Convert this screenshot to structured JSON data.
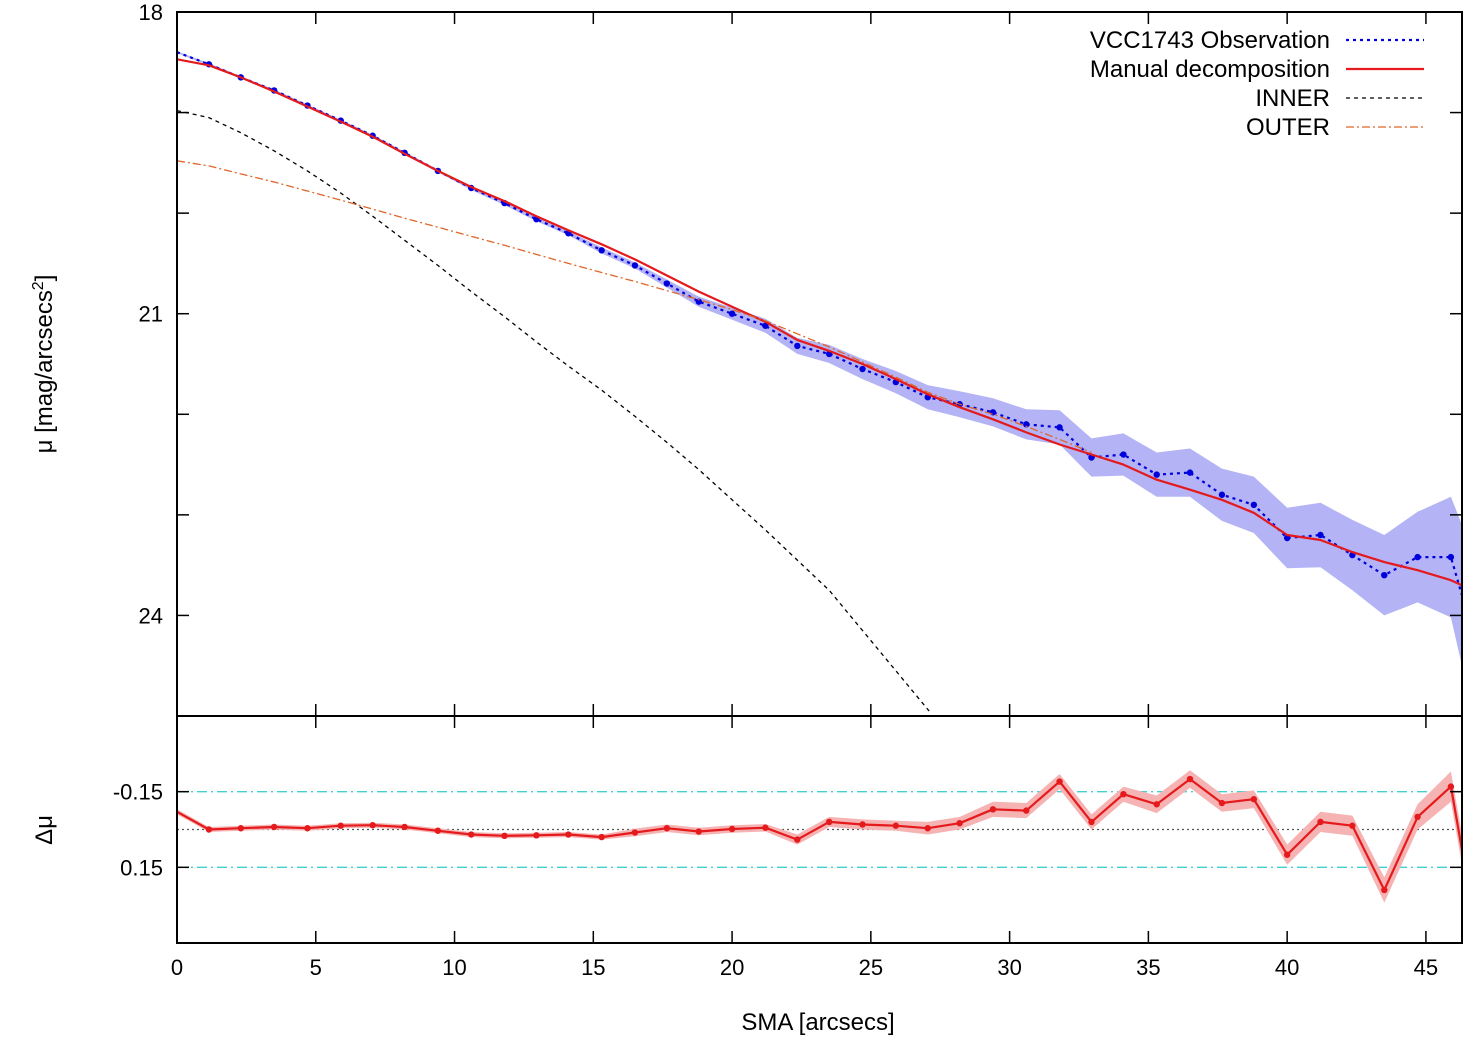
{
  "chart_data": [
    {
      "type": "line",
      "panel": "main",
      "xlabel": "",
      "ylabel": "μ [mag/arcsecs²]",
      "ylabel_main": "μ [mag/arcsecs",
      "ylabel_sup": "2",
      "ylabel_tail": "]",
      "xlim": [
        0,
        46.3
      ],
      "ylim": [
        18,
        25
      ],
      "y_inverted": true,
      "yticks": [
        18,
        21,
        24
      ],
      "ytick_labels": [
        "18",
        "21",
        "24"
      ],
      "y_minor_ticks": [
        18,
        19,
        20,
        21,
        22,
        23,
        24,
        25
      ],
      "xticks": [
        0,
        5,
        10,
        15,
        20,
        25,
        30,
        35,
        40,
        45
      ],
      "grid": false,
      "legend_position": "top-right",
      "legend": [
        {
          "label": "VCC1743 Observation",
          "color": "#0000dd",
          "style": "dotted"
        },
        {
          "label": "Manual decomposition",
          "color": "#e41a1c",
          "style": "solid"
        },
        {
          "label": "INNER",
          "color": "#000000",
          "style": "dashed"
        },
        {
          "label": "OUTER",
          "color": "#e0662a",
          "style": "dashdot"
        }
      ],
      "series": [
        {
          "name": "VCC1743 Observation",
          "color": "#0000dd",
          "band_color": "#b3b3f5",
          "x": [
            0,
            1.15,
            2.3,
            3.5,
            4.7,
            5.9,
            7.05,
            8.2,
            9.4,
            10.6,
            11.8,
            12.95,
            14.1,
            15.3,
            16.5,
            17.65,
            18.8,
            20,
            21.2,
            22.35,
            23.5,
            24.7,
            25.9,
            27.05,
            28.2,
            29.4,
            30.6,
            31.8,
            32.95,
            34.1,
            35.3,
            36.5,
            37.65,
            38.8,
            40,
            41.2,
            42.35,
            43.5,
            44.7,
            45.9,
            46.3
          ],
          "y": [
            18.4,
            18.52,
            18.65,
            18.78,
            18.93,
            19.08,
            19.23,
            19.4,
            19.58,
            19.75,
            19.9,
            20.06,
            20.2,
            20.37,
            20.52,
            20.7,
            20.88,
            21.0,
            21.12,
            21.32,
            21.4,
            21.55,
            21.68,
            21.83,
            21.9,
            21.98,
            22.1,
            22.13,
            22.43,
            22.4,
            22.6,
            22.58,
            22.8,
            22.9,
            23.23,
            23.2,
            23.4,
            23.6,
            23.42,
            23.42,
            23.8
          ],
          "err": [
            0.01,
            0.01,
            0.01,
            0.01,
            0.01,
            0.01,
            0.01,
            0.01,
            0.01,
            0.02,
            0.02,
            0.02,
            0.02,
            0.03,
            0.03,
            0.04,
            0.05,
            0.06,
            0.07,
            0.08,
            0.09,
            0.1,
            0.11,
            0.12,
            0.13,
            0.14,
            0.15,
            0.17,
            0.19,
            0.21,
            0.22,
            0.24,
            0.26,
            0.28,
            0.3,
            0.32,
            0.35,
            0.4,
            0.45,
            0.6,
            0.7
          ]
        },
        {
          "name": "Manual decomposition",
          "color": "#e41a1c",
          "x": [
            0,
            1.15,
            2.3,
            3.5,
            4.7,
            5.9,
            7.05,
            8.2,
            9.4,
            10.6,
            11.8,
            12.95,
            14.1,
            15.3,
            16.5,
            17.65,
            18.8,
            20,
            21.2,
            22.35,
            23.5,
            24.7,
            25.9,
            27.05,
            28.2,
            29.4,
            30.6,
            31.8,
            32.95,
            34.1,
            35.3,
            36.5,
            37.65,
            38.8,
            40,
            41.2,
            42.35,
            43.5,
            44.7,
            45.9,
            46.3
          ],
          "y": [
            18.47,
            18.53,
            18.65,
            18.79,
            18.94,
            19.09,
            19.24,
            19.41,
            19.58,
            19.74,
            19.88,
            20.03,
            20.17,
            20.31,
            20.46,
            20.62,
            20.78,
            20.93,
            21.08,
            21.26,
            21.37,
            21.5,
            21.65,
            21.8,
            21.93,
            22.05,
            22.18,
            22.3,
            22.4,
            22.5,
            22.65,
            22.75,
            22.85,
            22.98,
            23.2,
            23.25,
            23.37,
            23.47,
            23.55,
            23.65,
            23.7
          ]
        },
        {
          "name": "INNER",
          "color": "#000000",
          "x": [
            0,
            1.15,
            2.3,
            3.5,
            4.7,
            5.9,
            7.05,
            8.2,
            9.4,
            10.6,
            11.8,
            12.95,
            14.1,
            15.3,
            16.5,
            17.65,
            18.8,
            20,
            21.2,
            22.35,
            23.5,
            24.7,
            25.9,
            27.1
          ],
          "y": [
            18.98,
            19.05,
            19.2,
            19.38,
            19.58,
            19.8,
            20.03,
            20.27,
            20.52,
            20.78,
            21.03,
            21.28,
            21.52,
            21.76,
            22.02,
            22.28,
            22.55,
            22.85,
            23.15,
            23.45,
            23.75,
            24.15,
            24.55,
            24.95
          ]
        },
        {
          "name": "OUTER",
          "color": "#e0662a",
          "x": [
            0,
            1.15,
            2.3,
            3.5,
            4.7,
            5.9,
            7.05,
            8.2,
            9.4,
            10.6,
            11.8,
            12.95,
            14.1,
            15.3,
            16.5,
            17.65,
            18.8,
            20,
            21.2,
            22.35,
            23.5,
            24.7,
            25.9,
            27.05,
            28.2,
            29.4,
            30.6,
            31.8,
            32.95
          ],
          "y": [
            19.48,
            19.53,
            19.61,
            19.69,
            19.78,
            19.87,
            19.96,
            20.05,
            20.14,
            20.23,
            20.32,
            20.41,
            20.5,
            20.59,
            20.68,
            20.77,
            20.86,
            20.96,
            21.07,
            21.2,
            21.33,
            21.48,
            21.63,
            21.78,
            21.9,
            22.0,
            22.12,
            22.25,
            22.38
          ]
        }
      ]
    },
    {
      "type": "line",
      "panel": "residual",
      "xlabel": "SMA [arcsecs]",
      "ylabel": "Δμ",
      "xlim": [
        0,
        46.3
      ],
      "ylim": [
        -0.45,
        0.45
      ],
      "y_inverted": true,
      "yticks": [
        0.15,
        -0.15
      ],
      "ytick_labels": [
        "0.15",
        "-0.15"
      ],
      "xticks": [
        0,
        5,
        10,
        15,
        20,
        25,
        30,
        35,
        40,
        45
      ],
      "xtick_labels": [
        "0",
        "5",
        "10",
        "15",
        "20",
        "25",
        "30",
        "35",
        "40",
        "45"
      ],
      "reference_lines": [
        {
          "y": 0.15,
          "color": "#40d0d0",
          "style": "dashdot"
        },
        {
          "y": -0.15,
          "color": "#40d0d0",
          "style": "dashdot"
        },
        {
          "y": 0,
          "color": "#555555",
          "style": "dotted"
        }
      ],
      "series": [
        {
          "name": "",
          "color": "#e41a1c",
          "band_color": "#f6b3b3",
          "x": [
            0,
            1.15,
            2.3,
            3.5,
            4.7,
            5.9,
            7.05,
            8.2,
            9.4,
            10.6,
            11.8,
            12.95,
            14.1,
            15.3,
            16.5,
            17.65,
            18.8,
            20,
            21.2,
            22.35,
            23.5,
            24.7,
            25.9,
            27.05,
            28.2,
            29.4,
            30.6,
            31.8,
            32.95,
            34.1,
            35.3,
            36.5,
            37.65,
            38.8,
            40,
            41.2,
            42.35,
            43.5,
            44.7,
            45.9,
            46.3
          ],
          "y": [
            -0.07,
            0.0,
            -0.005,
            -0.01,
            -0.005,
            -0.015,
            -0.017,
            -0.01,
            0.005,
            0.02,
            0.025,
            0.023,
            0.02,
            0.03,
            0.012,
            -0.005,
            0.008,
            -0.002,
            -0.007,
            0.04,
            -0.03,
            -0.02,
            -0.015,
            -0.005,
            -0.025,
            -0.08,
            -0.075,
            -0.19,
            -0.03,
            -0.14,
            -0.1,
            -0.2,
            -0.105,
            -0.12,
            0.1,
            -0.03,
            -0.015,
            0.24,
            -0.05,
            -0.17,
            0.08
          ],
          "err": [
            0.01,
            0.01,
            0.01,
            0.01,
            0.01,
            0.01,
            0.01,
            0.01,
            0.01,
            0.01,
            0.01,
            0.01,
            0.01,
            0.01,
            0.015,
            0.015,
            0.015,
            0.015,
            0.015,
            0.02,
            0.02,
            0.02,
            0.02,
            0.025,
            0.025,
            0.03,
            0.03,
            0.03,
            0.03,
            0.03,
            0.035,
            0.035,
            0.035,
            0.035,
            0.04,
            0.04,
            0.04,
            0.05,
            0.05,
            0.06,
            0.06
          ]
        }
      ]
    }
  ]
}
